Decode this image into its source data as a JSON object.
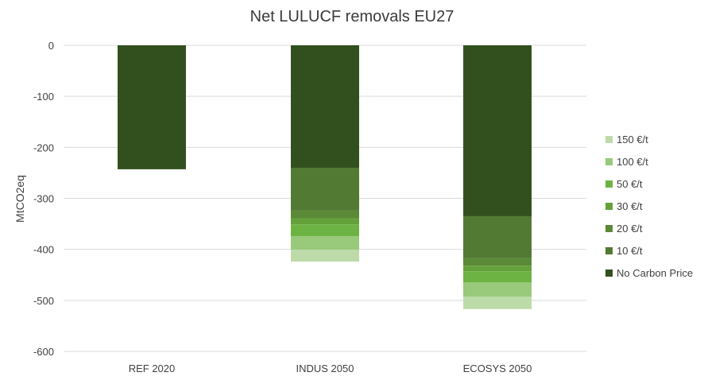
{
  "chart_data": {
    "type": "bar",
    "stacked": true,
    "title": "Net LULUCF removals EU27",
    "xlabel": "",
    "ylabel": "MtCO2eq",
    "ylim": [
      -600,
      0
    ],
    "yticks": [
      0,
      -100,
      -200,
      -300,
      -400,
      -500,
      -600
    ],
    "grid": true,
    "legend_position": "right",
    "categories": [
      "REF 2020",
      "INDUS 2050",
      "ECOSYS 2050"
    ],
    "series": [
      {
        "name": "No Carbon Price",
        "color": "#31501e",
        "values": [
          -243,
          -240,
          -335
        ]
      },
      {
        "name": "10 €/t",
        "color": "#527a33",
        "values": [
          0,
          -84,
          -82
        ]
      },
      {
        "name": "20 €/t",
        "color": "#5a8a37",
        "values": [
          0,
          -15,
          -15
        ]
      },
      {
        "name": "30 €/t",
        "color": "#64a13b",
        "values": [
          0,
          -12,
          -11
        ]
      },
      {
        "name": "50 €/t",
        "color": "#6db344",
        "values": [
          0,
          -23,
          -22
        ]
      },
      {
        "name": "100 €/t",
        "color": "#99c97a",
        "values": [
          0,
          -27,
          -28
        ]
      },
      {
        "name": "150 €/t",
        "color": "#bddba9",
        "values": [
          0,
          -23,
          -24
        ]
      }
    ]
  }
}
